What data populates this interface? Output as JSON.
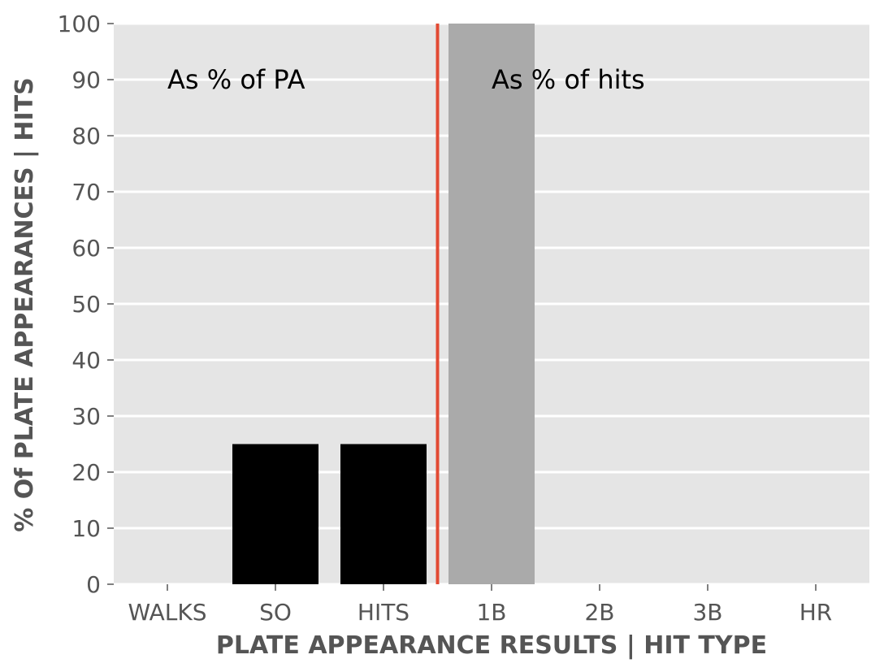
{
  "chart_data": {
    "type": "bar",
    "categories": [
      "WALKS",
      "SO",
      "HITS",
      "1B",
      "2B",
      "3B",
      "HR"
    ],
    "values": [
      0,
      25,
      25,
      100,
      0,
      0,
      0
    ],
    "bar_colors": [
      "#000000",
      "#000000",
      "#000000",
      "#aaaaaa",
      "#aaaaaa",
      "#aaaaaa",
      "#aaaaaa"
    ],
    "xlabel": "PLATE APPEARANCE RESULTS | HIT TYPE",
    "ylabel": "% Of PLATE APPEARANCES | HITS",
    "ylim": [
      0,
      100
    ],
    "yticks": [
      0,
      10,
      20,
      30,
      40,
      50,
      60,
      70,
      80,
      90,
      100
    ],
    "grid": true,
    "background_color": "#e5e5e5",
    "grid_color": "#ffffff",
    "divider": {
      "between": [
        "HITS",
        "1B"
      ],
      "color": "#e24a33"
    },
    "annotations": [
      {
        "text": "As % of PA",
        "x": "WALKS",
        "y": 90
      },
      {
        "text": "As % of hits",
        "x": "1B",
        "y": 90
      }
    ]
  }
}
